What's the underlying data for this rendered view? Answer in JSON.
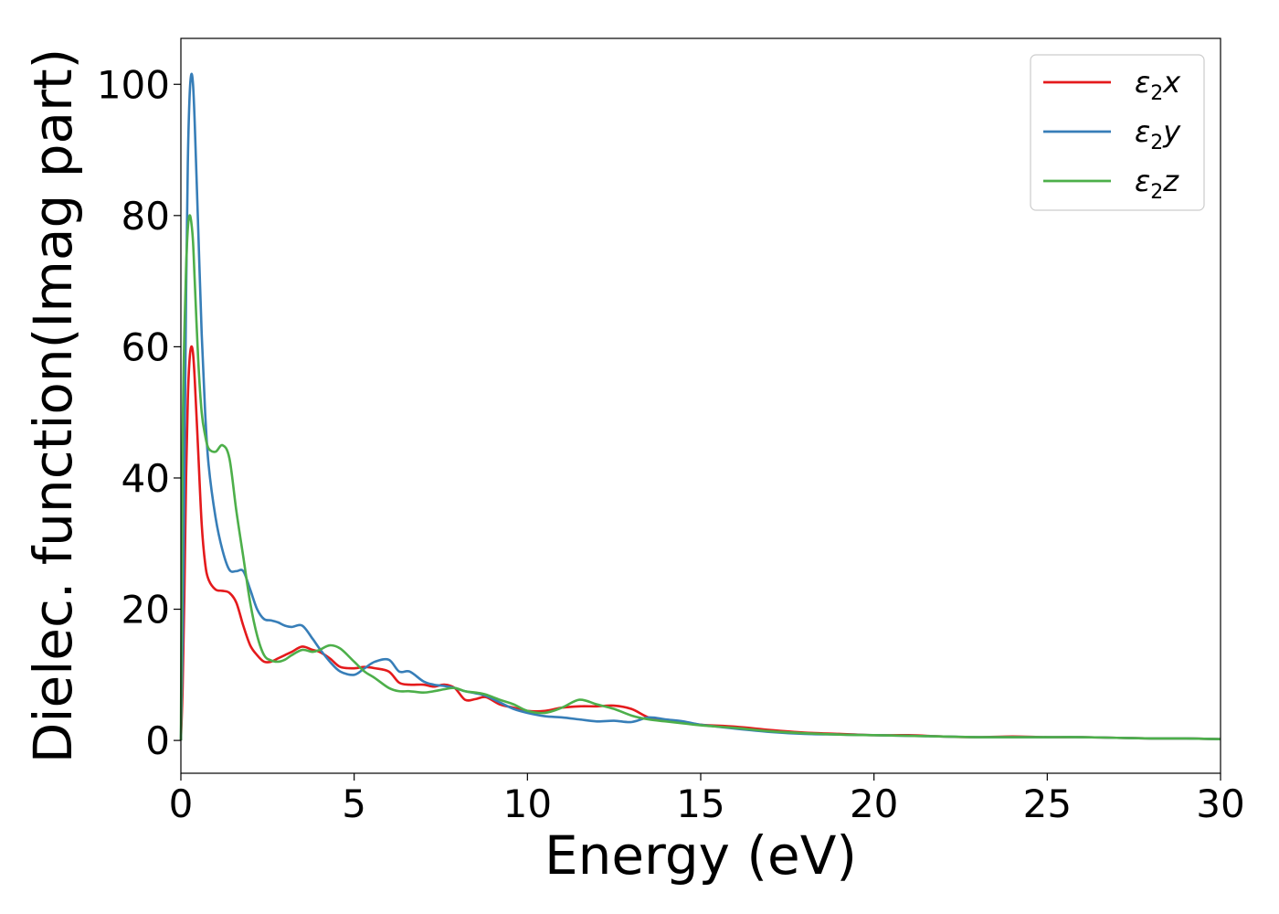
{
  "chart_data": {
    "type": "line",
    "xlabel": "Energy (eV)",
    "ylabel": "Dielec. function(Imag part)",
    "xlim": [
      0,
      30
    ],
    "ylim": [
      -5,
      107
    ],
    "xticks": [
      0,
      5,
      10,
      15,
      20,
      25,
      30
    ],
    "yticks": [
      0,
      20,
      40,
      60,
      80,
      100
    ],
    "grid": false,
    "legend_position": "top-right",
    "series": [
      {
        "name": "ε₂x",
        "legend": {
          "base": "ε",
          "sub": "2",
          "var": "x"
        },
        "color": "#e41a1c",
        "x": [
          0,
          0.05,
          0.1,
          0.15,
          0.2,
          0.25,
          0.3,
          0.35,
          0.4,
          0.5,
          0.6,
          0.7,
          0.8,
          1.0,
          1.2,
          1.4,
          1.6,
          1.8,
          2.0,
          2.2,
          2.4,
          2.6,
          2.8,
          3.0,
          3.2,
          3.5,
          3.8,
          4.0,
          4.3,
          4.6,
          5.0,
          5.3,
          5.6,
          6.0,
          6.3,
          6.6,
          7.0,
          7.3,
          7.6,
          7.9,
          8.2,
          8.5,
          8.8,
          9.2,
          9.6,
          10.0,
          10.5,
          11.0,
          11.5,
          12.0,
          12.5,
          13.0,
          13.5,
          14.0,
          14.5,
          15.0,
          16.0,
          17.0,
          18.0,
          19.0,
          20.0,
          21.0,
          22.0,
          23.0,
          24.0,
          25.0,
          26.0,
          27.0,
          28.0,
          29.0,
          30.0
        ],
        "y": [
          0,
          8,
          22,
          40,
          52,
          58,
          60,
          59,
          55,
          44,
          33,
          27,
          24.5,
          23,
          22.8,
          22.5,
          21,
          17.5,
          14.5,
          13,
          12,
          12,
          12.5,
          13,
          13.5,
          14.3,
          13.8,
          13.5,
          12.5,
          11.2,
          11,
          11.2,
          11,
          10.5,
          8.8,
          8.5,
          8.5,
          8.2,
          8.5,
          8.0,
          6.2,
          6.3,
          6.6,
          5.5,
          5.0,
          4.5,
          4.5,
          5.0,
          5.2,
          5.2,
          5.3,
          4.8,
          3.5,
          3.0,
          2.8,
          2.4,
          2.1,
          1.6,
          1.2,
          1.0,
          0.8,
          0.8,
          0.6,
          0.5,
          0.6,
          0.5,
          0.5,
          0.4,
          0.3,
          0.3,
          0.2
        ]
      },
      {
        "name": "ε₂y",
        "legend": {
          "base": "ε",
          "sub": "2",
          "var": "y"
        },
        "color": "#377eb8",
        "x": [
          0,
          0.05,
          0.1,
          0.15,
          0.2,
          0.25,
          0.3,
          0.35,
          0.4,
          0.5,
          0.6,
          0.7,
          0.8,
          1.0,
          1.2,
          1.4,
          1.6,
          1.8,
          2.0,
          2.2,
          2.4,
          2.6,
          2.8,
          3.0,
          3.2,
          3.5,
          3.8,
          4.0,
          4.3,
          4.6,
          5.0,
          5.3,
          5.6,
          6.0,
          6.3,
          6.6,
          7.0,
          7.3,
          7.6,
          7.9,
          8.2,
          8.5,
          8.8,
          9.2,
          9.6,
          10.0,
          10.5,
          11.0,
          11.5,
          12.0,
          12.5,
          13.0,
          13.5,
          14.0,
          14.5,
          15.0,
          16.0,
          17.0,
          18.0,
          19.0,
          20.0,
          21.0,
          22.0,
          23.0,
          24.0,
          25.0,
          26.0,
          27.0,
          28.0,
          29.0,
          30.0
        ],
        "y": [
          0,
          15,
          40,
          68,
          88,
          98,
          101.5,
          100,
          94,
          78,
          62,
          50,
          42,
          34,
          29,
          26,
          25.8,
          25.8,
          23,
          20,
          18.5,
          18.3,
          18,
          17.5,
          17.3,
          17.5,
          15.5,
          14,
          12,
          10.5,
          10,
          11,
          12,
          12.3,
          10.5,
          10.5,
          9.0,
          8.5,
          8.3,
          8.0,
          7.5,
          7.2,
          6.8,
          5.8,
          4.8,
          4.2,
          3.7,
          3.5,
          3.2,
          2.9,
          3.0,
          2.8,
          3.5,
          3.2,
          2.9,
          2.4,
          1.8,
          1.3,
          1.0,
          0.9,
          0.8,
          0.7,
          0.6,
          0.5,
          0.5,
          0.5,
          0.5,
          0.4,
          0.3,
          0.3,
          0.2
        ]
      },
      {
        "name": "ε₂z",
        "legend": {
          "base": "ε",
          "sub": "2",
          "var": "z"
        },
        "color": "#4daf4a",
        "x": [
          0,
          0.05,
          0.1,
          0.15,
          0.2,
          0.25,
          0.3,
          0.35,
          0.4,
          0.5,
          0.6,
          0.7,
          0.8,
          1.0,
          1.2,
          1.4,
          1.6,
          1.8,
          2.0,
          2.2,
          2.4,
          2.6,
          2.8,
          3.0,
          3.2,
          3.5,
          3.8,
          4.0,
          4.3,
          4.6,
          5.0,
          5.3,
          5.6,
          6.0,
          6.3,
          6.6,
          7.0,
          7.3,
          7.6,
          7.9,
          8.2,
          8.5,
          8.8,
          9.2,
          9.6,
          10.0,
          10.5,
          11.0,
          11.5,
          12.0,
          12.5,
          13.0,
          13.5,
          14.0,
          14.5,
          15.0,
          16.0,
          17.0,
          18.0,
          19.0,
          20.0,
          21.0,
          22.0,
          23.0,
          24.0,
          25.0,
          26.0,
          27.0,
          28.0,
          29.0,
          30.0
        ],
        "y": [
          0,
          45,
          62,
          72,
          78,
          80,
          79,
          76,
          70,
          58,
          50,
          46.5,
          44.5,
          44,
          45,
          43,
          35,
          28,
          21,
          16,
          13,
          12.2,
          12,
          12.3,
          13,
          13.8,
          13.5,
          13.8,
          14.5,
          14,
          12,
          10.5,
          9.5,
          8.0,
          7.5,
          7.5,
          7.3,
          7.5,
          7.8,
          8.0,
          7.5,
          7.3,
          7.0,
          6.2,
          5.5,
          4.5,
          4.2,
          5.0,
          6.2,
          5.5,
          4.8,
          3.8,
          3.2,
          2.9,
          2.6,
          2.3,
          1.9,
          1.4,
          1.1,
          0.9,
          0.8,
          0.7,
          0.6,
          0.5,
          0.5,
          0.5,
          0.5,
          0.4,
          0.3,
          0.3,
          0.2
        ]
      }
    ]
  }
}
